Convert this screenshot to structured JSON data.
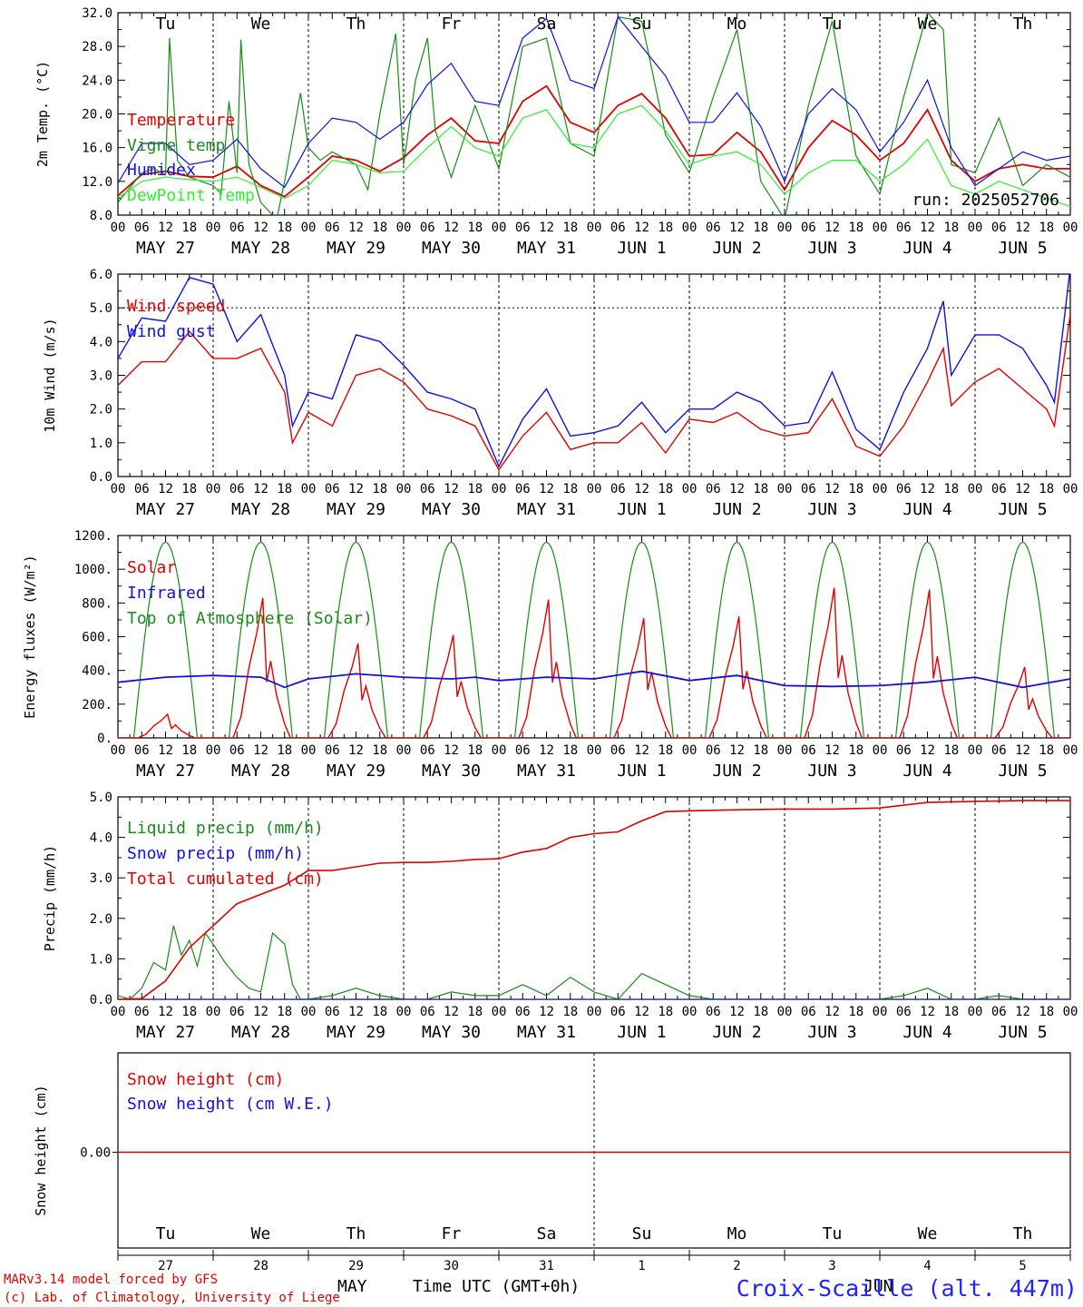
{
  "footer": {
    "model_line1": "MARv3.14 model forced by GFS",
    "model_line2": "(c) Lab. of Climatology, University of Liege",
    "month_label": "MAY",
    "month_label2": "JUN",
    "time_axis_title": "Time UTC (GMT+0h)",
    "site": "Croix-Scaille (alt. 447m)"
  },
  "colors": {
    "red": "#e00000",
    "green": "#1a8a1a",
    "blue": "#1010e0",
    "lightgreen": "#33ee33",
    "weekend": "#e02020"
  },
  "chart_data": [
    {
      "type": "line",
      "ylabel": "2m Temp. (°C)",
      "ylim": [
        8,
        32
      ],
      "yticks": [
        "8.0",
        "12.0",
        "16.0",
        "20.0",
        "24.0",
        "28.0",
        "32.0"
      ],
      "annotation": "run: 2025052706",
      "days": [
        "Tu",
        "We",
        "Th",
        "Fr",
        "Sa",
        "Su",
        "Mo",
        "Tu",
        "We",
        "Th"
      ],
      "dates": [
        "MAY 27",
        "MAY 28",
        "MAY 29",
        "MAY 30",
        "MAY 31",
        "JUN  1",
        "JUN  2",
        "JUN  3",
        "JUN  4",
        "JUN  5"
      ],
      "hours": [
        "00",
        "06",
        "12",
        "18"
      ],
      "x_unit": "hours since May 27 00 UTC",
      "series": [
        {
          "name": "Temperature",
          "color": "#e00000",
          "x": [
            0,
            6,
            12,
            18,
            24,
            30,
            36,
            42,
            48,
            54,
            60,
            66,
            72,
            78,
            84,
            90,
            96,
            102,
            108,
            114,
            120,
            126,
            132,
            138,
            144,
            150,
            156,
            162,
            168,
            174,
            180,
            186,
            192,
            198,
            204,
            210,
            216,
            222,
            228,
            234,
            240
          ],
          "y": [
            10.3,
            12.8,
            13.2,
            12.6,
            12.5,
            13.8,
            11.5,
            10.2,
            12.5,
            15.0,
            14.5,
            13.2,
            14.8,
            17.5,
            19.5,
            16.8,
            16.5,
            21.5,
            23.3,
            19.0,
            17.8,
            21.0,
            22.4,
            19.5,
            15.0,
            15.2,
            17.8,
            15.5,
            11.0,
            16.0,
            19.2,
            17.5,
            14.5,
            16.5,
            20.5,
            14.5,
            12.0,
            13.5,
            14.0,
            13.5,
            13.5
          ]
        },
        {
          "name": "Vigne temp",
          "color": "#1a8a1a",
          "x": [
            0,
            6,
            9,
            12,
            13,
            15,
            18,
            24,
            26,
            28,
            30,
            31,
            33,
            36,
            40,
            42,
            46,
            48,
            51,
            54,
            60,
            63,
            66,
            70,
            72,
            75,
            78,
            80,
            84,
            90,
            96,
            102,
            108,
            114,
            120,
            126,
            132,
            138,
            144,
            150,
            156,
            162,
            168,
            174,
            180,
            186,
            192,
            198,
            204,
            208,
            210,
            216,
            222,
            228,
            234,
            240
          ],
          "y": [
            9.5,
            13.0,
            13.5,
            12.8,
            29.0,
            14.5,
            12.5,
            11.5,
            10.5,
            21.5,
            13.0,
            28.8,
            14.0,
            9.5,
            7.5,
            12.0,
            22.5,
            16.0,
            14.5,
            15.5,
            14.0,
            11.0,
            20.0,
            29.5,
            14.0,
            24.0,
            29.0,
            18.0,
            12.5,
            21.0,
            13.5,
            28.0,
            29.0,
            16.5,
            15.0,
            31.5,
            31.0,
            17.5,
            13.0,
            22.0,
            30.0,
            12.0,
            7.5,
            21.0,
            31.0,
            15.0,
            10.5,
            22.0,
            32.0,
            30.0,
            14.0,
            13.0,
            19.5,
            11.5,
            14.0,
            12.5
          ]
        },
        {
          "name": "Humidex",
          "color": "#1010e0",
          "x": [
            0,
            6,
            12,
            18,
            24,
            30,
            36,
            42,
            48,
            54,
            60,
            66,
            72,
            78,
            84,
            90,
            96,
            102,
            108,
            114,
            120,
            126,
            132,
            138,
            144,
            150,
            156,
            162,
            168,
            174,
            180,
            186,
            192,
            198,
            204,
            210,
            216,
            222,
            228,
            234,
            240
          ],
          "y": [
            11.8,
            16.5,
            16.5,
            14.0,
            14.5,
            17.0,
            13.5,
            11.3,
            16.5,
            19.5,
            19.0,
            17.0,
            19.0,
            23.5,
            26.0,
            21.5,
            21.0,
            29.0,
            31.3,
            24.0,
            23.0,
            31.5,
            28.0,
            24.5,
            19.0,
            19.0,
            22.5,
            18.5,
            12.0,
            20.0,
            23.0,
            20.5,
            15.5,
            19.0,
            24.0,
            16.0,
            11.5,
            13.5,
            15.5,
            14.5,
            15.0
          ]
        },
        {
          "name": "DewPoint Temp",
          "color": "#33ee33",
          "x": [
            0,
            6,
            12,
            18,
            24,
            30,
            36,
            42,
            48,
            54,
            60,
            66,
            72,
            78,
            84,
            90,
            96,
            102,
            108,
            114,
            120,
            126,
            132,
            138,
            144,
            150,
            156,
            162,
            168,
            174,
            180,
            186,
            192,
            198,
            204,
            210,
            216,
            222,
            228,
            234,
            240
          ],
          "y": [
            10.0,
            12.0,
            12.5,
            12.2,
            12.0,
            12.5,
            11.3,
            10.0,
            11.5,
            14.5,
            14.0,
            13.0,
            13.2,
            16.0,
            18.5,
            16.0,
            15.0,
            19.5,
            20.5,
            16.5,
            16.0,
            20.0,
            21.0,
            18.0,
            14.0,
            15.0,
            15.5,
            14.0,
            10.5,
            13.0,
            14.5,
            14.5,
            12.0,
            14.0,
            17.0,
            11.5,
            10.5,
            12.0,
            11.0,
            10.0,
            9.0
          ]
        }
      ]
    },
    {
      "type": "line",
      "ylabel": "10m Wind (m/s)",
      "ylim": [
        0,
        6
      ],
      "yticks": [
        "0.0",
        "1.0",
        "2.0",
        "3.0",
        "4.0",
        "5.0",
        "6.0"
      ],
      "ref_line": 5.0,
      "series": [
        {
          "name": "Wind speed",
          "color": "#e00000",
          "x": [
            0,
            6,
            12,
            18,
            24,
            30,
            36,
            42,
            44,
            48,
            54,
            60,
            66,
            72,
            78,
            84,
            90,
            96,
            102,
            108,
            114,
            120,
            126,
            132,
            138,
            144,
            150,
            156,
            162,
            168,
            174,
            180,
            186,
            192,
            198,
            204,
            208,
            210,
            216,
            222,
            228,
            234,
            236,
            240
          ],
          "y": [
            2.7,
            3.4,
            3.4,
            4.3,
            3.5,
            3.5,
            3.8,
            2.5,
            1.0,
            1.9,
            1.5,
            3.0,
            3.2,
            2.8,
            2.0,
            1.8,
            1.5,
            0.2,
            1.2,
            1.9,
            0.8,
            1.0,
            1.0,
            1.6,
            0.7,
            1.7,
            1.6,
            1.9,
            1.4,
            1.2,
            1.3,
            2.3,
            0.9,
            0.6,
            1.5,
            2.8,
            3.8,
            2.1,
            2.8,
            3.2,
            2.6,
            2.0,
            1.5,
            4.8
          ]
        },
        {
          "name": "Wind gust",
          "color": "#1010e0",
          "x": [
            0,
            6,
            12,
            18,
            24,
            30,
            36,
            42,
            44,
            48,
            54,
            60,
            66,
            72,
            78,
            84,
            90,
            96,
            102,
            108,
            114,
            120,
            126,
            132,
            138,
            144,
            150,
            156,
            162,
            168,
            174,
            180,
            186,
            192,
            198,
            204,
            208,
            210,
            216,
            222,
            228,
            234,
            236,
            240
          ],
          "y": [
            3.5,
            4.7,
            4.6,
            5.9,
            5.7,
            4.0,
            4.8,
            3.0,
            1.5,
            2.5,
            2.3,
            4.2,
            4.0,
            3.3,
            2.5,
            2.3,
            2.0,
            0.3,
            1.7,
            2.6,
            1.2,
            1.3,
            1.5,
            2.2,
            1.3,
            2.0,
            2.0,
            2.5,
            2.2,
            1.5,
            1.6,
            3.1,
            1.4,
            0.8,
            2.5,
            3.8,
            5.2,
            3.0,
            4.2,
            4.2,
            3.8,
            2.7,
            2.2,
            6.2
          ]
        }
      ]
    },
    {
      "type": "line",
      "ylabel": "Energy fluxes (W/m²)",
      "ylim": [
        0,
        1200
      ],
      "yticks": [
        "0.",
        "200.",
        "400.",
        "600.",
        "800.",
        "1000.",
        "1200."
      ],
      "series": [
        {
          "name": "Solar",
          "color": "#e00000",
          "peaks": [
            {
              "day": 0,
              "v": 140
            },
            {
              "day": 1,
              "v": 830
            },
            {
              "day": 2,
              "v": 560
            },
            {
              "day": 3,
              "v": 610
            },
            {
              "day": 4,
              "v": 820
            },
            {
              "day": 5,
              "v": 710
            },
            {
              "day": 6,
              "v": 720
            },
            {
              "day": 7,
              "v": 890
            },
            {
              "day": 8,
              "v": 880
            },
            {
              "day": 9,
              "v": 420
            }
          ]
        },
        {
          "name": "Infrared",
          "color": "#1010e0",
          "x": [
            0,
            12,
            24,
            36,
            42,
            48,
            60,
            72,
            84,
            90,
            96,
            108,
            120,
            132,
            144,
            156,
            168,
            180,
            192,
            204,
            216,
            228,
            240
          ],
          "y": [
            330,
            360,
            370,
            360,
            300,
            350,
            380,
            360,
            350,
            360,
            340,
            360,
            350,
            395,
            340,
            370,
            310,
            305,
            310,
            330,
            360,
            300,
            350
          ]
        },
        {
          "name": "Top of Atmosphere (Solar)",
          "color": "#1a8a1a",
          "daily_max": 1160
        }
      ]
    },
    {
      "type": "line",
      "ylabel": "Precip (mm/h)",
      "ylim": [
        0,
        5.5
      ],
      "yticks": [
        "0.0",
        "1.0",
        "2.0",
        "3.0",
        "4.0",
        "5.0"
      ],
      "series": [
        {
          "name": "Liquid precip (mm/h)",
          "color": "#1a8a1a",
          "x": [
            0,
            3,
            6,
            9,
            12,
            14,
            16,
            18,
            20,
            22,
            24,
            27,
            30,
            33,
            36,
            39,
            42,
            44,
            46,
            48,
            54,
            60,
            66,
            72,
            78,
            84,
            90,
            96,
            102,
            108,
            114,
            120,
            126,
            132,
            138,
            144,
            150,
            156,
            162,
            168,
            174,
            180,
            186,
            192,
            198,
            204,
            210,
            216,
            222,
            228,
            234,
            240
          ],
          "y": [
            0.1,
            0.0,
            0.3,
            1.0,
            0.8,
            2.0,
            1.2,
            1.6,
            0.9,
            1.8,
            1.5,
            1.0,
            0.6,
            0.3,
            0.2,
            1.8,
            1.5,
            0.4,
            0.0,
            0.0,
            0.1,
            0.3,
            0.1,
            0.0,
            0.0,
            0.2,
            0.1,
            0.1,
            0.4,
            0.1,
            0.6,
            0.2,
            0.0,
            0.7,
            0.4,
            0.1,
            0.0,
            0.0,
            0.0,
            0.0,
            0.0,
            0.0,
            0.0,
            0.0,
            0.1,
            0.3,
            0.0,
            0.0,
            0.1,
            0.0,
            0.0,
            0.0
          ]
        },
        {
          "name": "Snow precip (mm/h)",
          "color": "#1010e0",
          "x": [
            0,
            240
          ],
          "y": [
            0,
            0
          ]
        },
        {
          "name": "Total cumulated (cm)",
          "color": "#e00000",
          "x": [
            0,
            6,
            12,
            18,
            24,
            30,
            36,
            42,
            48,
            54,
            60,
            66,
            72,
            78,
            84,
            90,
            96,
            102,
            108,
            114,
            120,
            126,
            132,
            138,
            144,
            156,
            168,
            180,
            192,
            204,
            216,
            228,
            240
          ],
          "y": [
            0.0,
            0.02,
            0.5,
            1.4,
            2.0,
            2.6,
            2.85,
            3.1,
            3.5,
            3.5,
            3.6,
            3.7,
            3.72,
            3.72,
            3.75,
            3.8,
            3.82,
            4.0,
            4.1,
            4.4,
            4.5,
            4.55,
            4.85,
            5.1,
            5.12,
            5.15,
            5.17,
            5.17,
            5.2,
            5.35,
            5.38,
            5.4,
            5.4
          ]
        }
      ]
    },
    {
      "type": "line",
      "ylabel": "Snow height (cm)",
      "ytick": "0.00",
      "days": [
        "Tu",
        "We",
        "Th",
        "Fr",
        "Sa",
        "Su",
        "Mo",
        "Tu",
        "We",
        "Th"
      ],
      "daynums": [
        "27",
        "28",
        "29",
        "30",
        "31",
        "1",
        "2",
        "3",
        "4",
        "5"
      ],
      "series": [
        {
          "name": "Snow height (cm)",
          "color": "#e00000",
          "x": [
            0,
            240
          ],
          "y": [
            0,
            0
          ]
        },
        {
          "name": "Snow height (cm W.E.)",
          "color": "#1010e0",
          "x": [
            0,
            240
          ],
          "y": [
            0,
            0
          ]
        }
      ]
    }
  ]
}
